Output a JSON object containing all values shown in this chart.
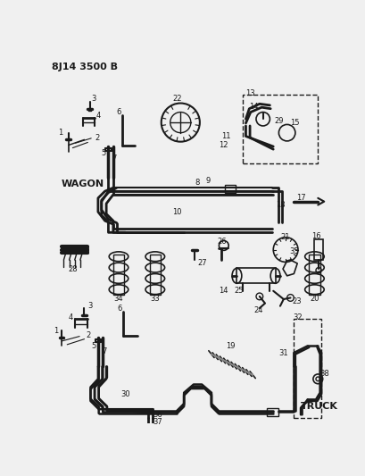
{
  "title": "8J14 3500 B",
  "background_color": "#f0f0f0",
  "line_color": "#1a1a1a",
  "figsize": [
    4.09,
    5.33
  ],
  "dpi": 100,
  "wagon_label": "WAGON",
  "truck_label": "TRUCK"
}
